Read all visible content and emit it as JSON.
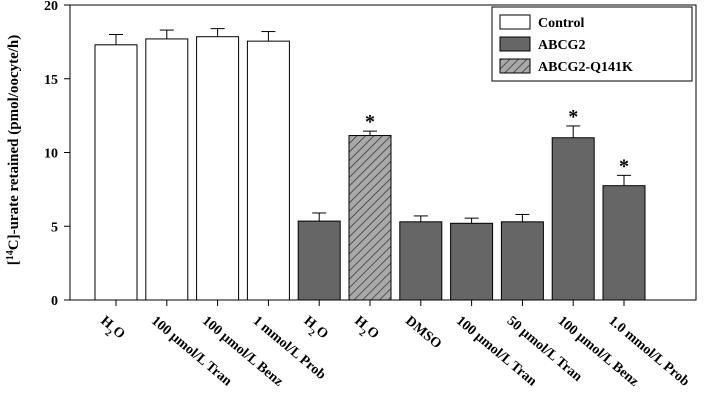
{
  "chart_data": {
    "type": "bar",
    "title": "",
    "xlabel": "",
    "ylabel_parts": [
      "[",
      "14",
      "C]-urate retained (pmol/oocyte/h)"
    ],
    "ylim": [
      0,
      20
    ],
    "yticks": [
      "0",
      "5",
      "10",
      "15",
      "20"
    ],
    "categories": [
      {
        "line1": "H",
        "sub": "2",
        "line1b": "O"
      },
      {
        "line1": "100 μmol/L Tran"
      },
      {
        "line1": "100 μmol/L Benz"
      },
      {
        "line1": "1 mmol/L Prob"
      },
      {
        "line1": "H",
        "sub": "2",
        "line1b": "O"
      },
      {
        "line1": "H",
        "sub": "2",
        "line1b": "O"
      },
      {
        "line1": "DMSO"
      },
      {
        "line1": "100 μmol/L Tran"
      },
      {
        "line1": "50 μmol/L Tran"
      },
      {
        "line1": "100 μmol/L Benz"
      },
      {
        "line1": "1.0 mmol/L Prob"
      }
    ],
    "values": [
      17.3,
      17.7,
      17.85,
      17.55,
      5.35,
      11.15,
      5.3,
      5.2,
      5.3,
      11.0,
      7.75
    ],
    "errors": [
      0.7,
      0.6,
      0.55,
      0.65,
      0.55,
      0.3,
      0.4,
      0.35,
      0.5,
      0.8,
      0.7
    ],
    "groups": [
      "Control",
      "Control",
      "Control",
      "Control",
      "ABCG2",
      "ABCG2-Q141K",
      "ABCG2",
      "ABCG2",
      "ABCG2",
      "ABCG2",
      "ABCG2"
    ],
    "significance": [
      "",
      "",
      "",
      "",
      "",
      "*",
      "",
      "",
      "",
      "*",
      "*"
    ],
    "legend": [
      {
        "name": "Control",
        "style": "white"
      },
      {
        "name": "ABCG2",
        "style": "gray"
      },
      {
        "name": "ABCG2-Q141K",
        "style": "hatched"
      }
    ],
    "legend_position": "top-right",
    "colors": {
      "white": "#ffffff",
      "gray": "#666666",
      "hatch_bg": "#a9a9a9",
      "hatch_line": "#3a3a3a"
    }
  }
}
